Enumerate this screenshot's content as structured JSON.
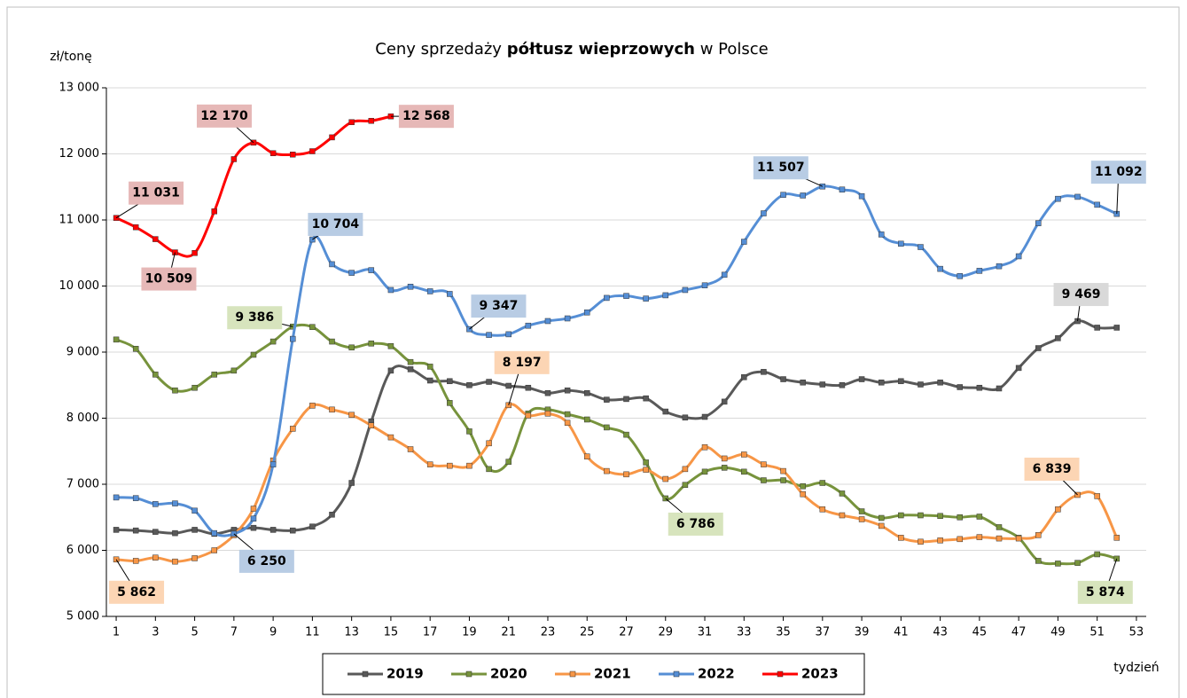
{
  "chart_data": {
    "type": "line",
    "title_parts": [
      "Ceny sprzedaży",
      "półtusz wieprzowych",
      "w Polsce"
    ],
    "y_label": "zł/tonę",
    "x_label": "tydzień",
    "x": [
      1,
      2,
      3,
      4,
      5,
      6,
      7,
      8,
      9,
      10,
      11,
      12,
      13,
      14,
      15,
      16,
      17,
      18,
      19,
      20,
      21,
      22,
      23,
      24,
      25,
      26,
      27,
      28,
      29,
      30,
      31,
      32,
      33,
      34,
      35,
      36,
      37,
      38,
      39,
      40,
      41,
      42,
      43,
      44,
      45,
      46,
      47,
      48,
      49,
      50,
      51,
      52
    ],
    "xlim": [
      0.5,
      53.5
    ],
    "xticks": [
      1,
      3,
      5,
      7,
      9,
      11,
      13,
      15,
      17,
      19,
      21,
      23,
      25,
      27,
      29,
      31,
      33,
      35,
      37,
      39,
      41,
      43,
      45,
      47,
      49,
      51,
      53
    ],
    "ylim": [
      5000,
      13000
    ],
    "yticks": [
      {
        "value": 5000,
        "label": "5 000"
      },
      {
        "value": 6000,
        "label": "6 000"
      },
      {
        "value": 7000,
        "label": "7 000"
      },
      {
        "value": 8000,
        "label": "8 000"
      },
      {
        "value": 9000,
        "label": "9 000"
      },
      {
        "value": 10000,
        "label": "10 000"
      },
      {
        "value": 11000,
        "label": "11 000"
      },
      {
        "value": 12000,
        "label": "12 000"
      },
      {
        "value": 13000,
        "label": "13 000"
      }
    ],
    "grid": true,
    "series": [
      {
        "name": "2019",
        "color": "#595959",
        "label_bg": "#d9d9d9",
        "values": [
          6310,
          6300,
          6280,
          6260,
          6310,
          6250,
          6310,
          6340,
          6310,
          6300,
          6360,
          6540,
          7020,
          7950,
          8720,
          8740,
          8570,
          8560,
          8500,
          8550,
          8490,
          8460,
          8380,
          8420,
          8380,
          8280,
          8290,
          8300,
          8100,
          8010,
          8020,
          8250,
          8620,
          8700,
          8590,
          8540,
          8510,
          8500,
          8590,
          8540,
          8560,
          8510,
          8540,
          8470,
          8460,
          8450,
          8760,
          9060,
          9210,
          9469,
          9370,
          9370
        ],
        "value_labels": [
          null,
          null,
          null,
          null,
          null,
          null,
          null,
          null,
          null,
          null,
          null,
          null,
          null,
          null,
          null,
          null,
          null,
          null,
          null,
          null,
          null,
          null,
          null,
          null,
          null,
          null,
          null,
          null,
          null,
          null,
          null,
          null,
          null,
          null,
          null,
          null,
          null,
          null,
          null,
          null,
          null,
          null,
          null,
          null,
          null,
          null,
          null,
          null,
          null,
          "9 469",
          null,
          null
        ]
      },
      {
        "name": "2020",
        "color": "#77933c",
        "label_bg": "#d7e4bd",
        "values": [
          9190,
          9050,
          8660,
          8420,
          8460,
          8660,
          8720,
          8960,
          9160,
          9386,
          9380,
          9160,
          9070,
          9130,
          9090,
          8850,
          8780,
          8230,
          7800,
          7230,
          7340,
          8070,
          8130,
          8060,
          7980,
          7860,
          7750,
          7330,
          6786,
          6990,
          7190,
          7250,
          7190,
          7060,
          7060,
          6970,
          7020,
          6860,
          6590,
          6490,
          6530,
          6530,
          6520,
          6500,
          6510,
          6350,
          6190,
          5840,
          5800,
          5810,
          5940,
          5874
        ],
        "value_labels": [
          null,
          null,
          null,
          null,
          null,
          null,
          null,
          null,
          null,
          "9 386",
          null,
          null,
          null,
          null,
          null,
          null,
          null,
          null,
          null,
          null,
          null,
          null,
          null,
          null,
          null,
          null,
          null,
          null,
          "6 786",
          null,
          null,
          null,
          null,
          null,
          null,
          null,
          null,
          null,
          null,
          null,
          null,
          null,
          null,
          null,
          null,
          null,
          null,
          null,
          null,
          null,
          null,
          "5 874"
        ]
      },
      {
        "name": "2021",
        "color": "#f79646",
        "label_bg": "#fcd5b4",
        "values": [
          5862,
          5840,
          5890,
          5830,
          5880,
          6000,
          6230,
          6630,
          7360,
          7840,
          8190,
          8130,
          8050,
          7890,
          7710,
          7530,
          7300,
          7280,
          7280,
          7620,
          8197,
          8040,
          8070,
          7930,
          7420,
          7200,
          7150,
          7220,
          7080,
          7230,
          7560,
          7390,
          7450,
          7300,
          7200,
          6850,
          6620,
          6530,
          6470,
          6370,
          6190,
          6130,
          6150,
          6170,
          6200,
          6180,
          6180,
          6230,
          6620,
          6839,
          6820,
          6190
        ],
        "value_labels": [
          "5 862",
          null,
          null,
          null,
          null,
          null,
          null,
          null,
          null,
          null,
          null,
          null,
          null,
          null,
          null,
          null,
          null,
          null,
          null,
          null,
          "8 197",
          null,
          null,
          null,
          null,
          null,
          null,
          null,
          null,
          null,
          null,
          null,
          null,
          null,
          null,
          null,
          null,
          null,
          null,
          null,
          null,
          null,
          null,
          null,
          null,
          null,
          null,
          null,
          null,
          "6 839",
          null,
          null
        ]
      },
      {
        "name": "2022",
        "color": "#558ed5",
        "label_bg": "#b8cce4",
        "values": [
          6800,
          6790,
          6700,
          6710,
          6600,
          6260,
          6250,
          6480,
          7300,
          9200,
          10704,
          10330,
          10200,
          10240,
          9940,
          9990,
          9920,
          9880,
          9347,
          9260,
          9270,
          9400,
          9470,
          9510,
          9600,
          9820,
          9850,
          9810,
          9860,
          9940,
          10010,
          10170,
          10670,
          11100,
          11380,
          11370,
          11507,
          11460,
          11360,
          10780,
          10640,
          10590,
          10260,
          10150,
          10230,
          10300,
          10450,
          10950,
          11320,
          11350,
          11230,
          11092
        ],
        "value_labels": [
          null,
          null,
          null,
          null,
          null,
          null,
          "6 250",
          null,
          null,
          null,
          "10 704",
          null,
          null,
          null,
          null,
          null,
          null,
          null,
          "9 347",
          null,
          null,
          null,
          null,
          null,
          null,
          null,
          null,
          null,
          null,
          null,
          null,
          null,
          null,
          null,
          null,
          null,
          "11 507",
          null,
          null,
          null,
          null,
          null,
          null,
          null,
          null,
          null,
          null,
          null,
          null,
          null,
          null,
          "11 092"
        ]
      },
      {
        "name": "2023",
        "color": "#ff0000",
        "label_bg": "#e6b8b7",
        "values": [
          11031,
          10890,
          10710,
          10509,
          10500,
          11130,
          11920,
          12170,
          12010,
          11990,
          12040,
          12250,
          12480,
          12500,
          12568,
          null,
          null,
          null,
          null,
          null,
          null,
          null,
          null,
          null,
          null,
          null,
          null,
          null,
          null,
          null,
          null,
          null,
          null,
          null,
          null,
          null,
          null,
          null,
          null,
          null,
          null,
          null,
          null,
          null,
          null,
          null,
          null,
          null,
          null,
          null,
          null,
          null
        ],
        "value_labels": [
          "11 031",
          null,
          null,
          "10 509",
          null,
          null,
          null,
          "12 170",
          null,
          null,
          null,
          null,
          null,
          null,
          "12 568",
          null,
          null,
          null,
          null,
          null,
          null,
          null,
          null,
          null,
          null,
          null,
          null,
          null,
          null,
          null,
          null,
          null,
          null,
          null,
          null,
          null,
          null,
          null,
          null,
          null,
          null,
          null,
          null,
          null,
          null,
          null,
          null,
          null,
          null,
          null,
          null,
          null
        ]
      }
    ]
  }
}
